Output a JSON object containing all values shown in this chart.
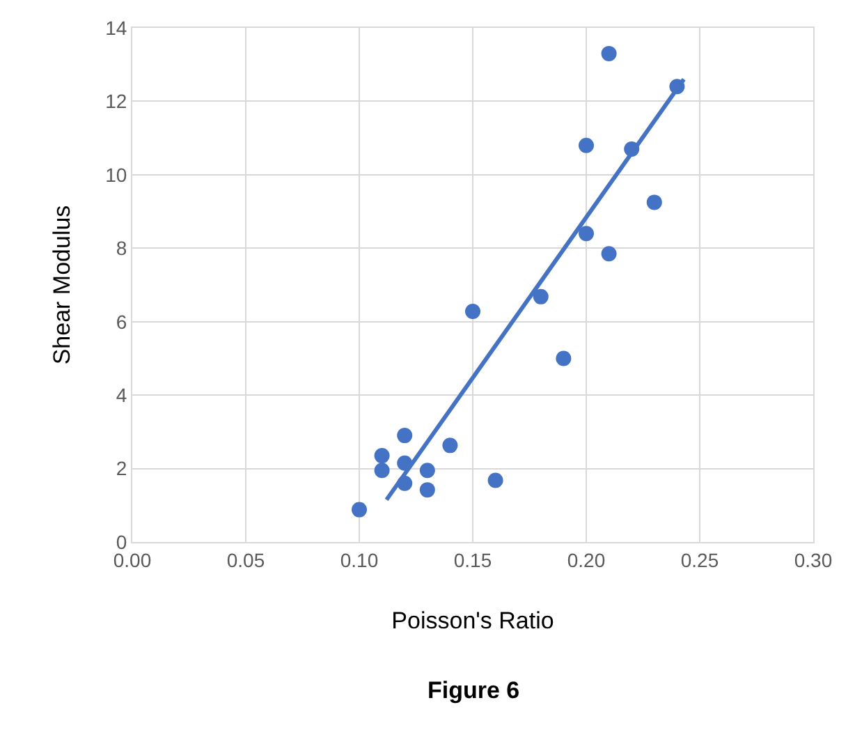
{
  "chart_data": {
    "type": "scatter",
    "xlabel": "Poisson's Ratio",
    "ylabel": "Shear Modulus",
    "annotations": [
      "Figure 6"
    ],
    "xlim": [
      0,
      0.3
    ],
    "xticks": [
      {
        "value": 0,
        "label": "0.00"
      },
      {
        "value": 0.05,
        "label": "0.05"
      },
      {
        "value": 0.1,
        "label": "0.10"
      },
      {
        "value": 0.15,
        "label": "0.15"
      },
      {
        "value": 0.2,
        "label": "0.20"
      },
      {
        "value": 0.25,
        "label": "0.25"
      },
      {
        "value": 0.3,
        "label": "0.30"
      }
    ],
    "ylim": [
      0,
      14
    ],
    "yticks": [
      0,
      2,
      4,
      6,
      8,
      10,
      12,
      14
    ],
    "grid": true,
    "marker": "circle",
    "series": [
      {
        "color": "#4472c4",
        "x": [
          0.1,
          0.11,
          0.11,
          0.12,
          0.12,
          0.12,
          0.13,
          0.13,
          0.14,
          0.15,
          0.16,
          0.18,
          0.19,
          0.2,
          0.2,
          0.21,
          0.21,
          0.22,
          0.23,
          0.24
        ],
        "values": [
          0.88,
          2.35,
          1.95,
          2.9,
          2.15,
          1.6,
          1.95,
          1.42,
          2.63,
          6.28,
          1.68,
          6.68,
          5.0,
          10.8,
          8.4,
          13.3,
          7.85,
          10.7,
          9.25,
          12.4
        ]
      },
      {
        "type": "line",
        "color": "#4472c4",
        "x": [
          0.112,
          0.243
        ],
        "values": [
          1.15,
          12.6
        ],
        "line_style": "solid",
        "marker": "none"
      }
    ]
  }
}
